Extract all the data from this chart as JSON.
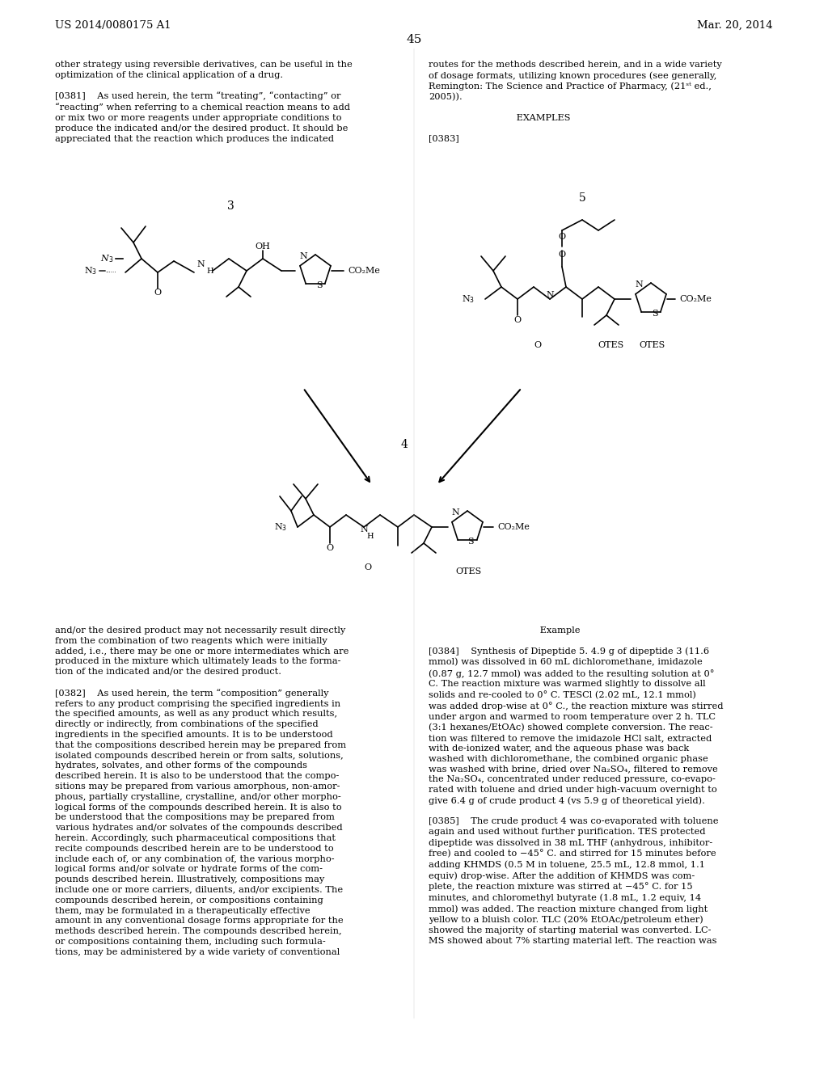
{
  "page_number": "45",
  "header_left": "US 2014/0080175 A1",
  "header_right": "Mar. 20, 2014",
  "background_color": "#ffffff",
  "text_color": "#000000",
  "left_col_top_text": "other strategy using reversible derivatives, can be useful in the\noptimization of the clinical application of a drug.\n\n[0381]    As used herein, the term “treating”, “contacting” or\n“reacting” when referring to a chemical reaction means to add\nor mix two or more reagents under appropriate conditions to\nproduce the indicated and/or the desired product. It should be\nappreciated that the reaction which produces the indicated",
  "right_col_top_text": "routes for the methods described herein, and in a wide variety\nof dosage formats, utilizing known procedures (see generally,\nRemington: The Science and Practice of Pharmacy, (21st ed.,\n2005)).\n\n                              EXAMPLES\n\n[0383]",
  "left_col_bottom_text": "and/or the desired product may not necessarily result directly\nfrom the combination of two reagents which were initially\nadded, i.e., there may be one or more intermediates which are\nproduced in the mixture which ultimately leads to the forma-\ntion of the indicated and/or the desired product.\n\n[0382]    As used herein, the term “composition” generally\nrefers to any product comprising the specified ingredients in\nthe specified amounts, as well as any product which results,\ndirectly or indirectly, from combinations of the specified\ningredients in the specified amounts. It is to be understood\nthat the compositions described herein may be prepared from\nisolated compounds described herein or from salts, solutions,\nhydrates, solvates, and other forms of the compounds\ndescribed herein. It is also to be understood that the compo-\nsitions may be prepared from various amorphous, non-amor-\nphous, partially crystalline, crystalline, and/or other morpho-\nlogical forms of the compounds described herein. It is also to\nbe understood that the compositions may be prepared from\nvarious hydrates and/or solvates of the compounds described\nherein. Accordingly, such pharmaceutical compositions that\nrecite compounds described herein are to be understood to\ninclude each of, or any combination of, the various morpho-\nlogical forms and/or solvate or hydrate forms of the com-\npounds described herein. Illustratively, compositions may\ninclude one or more carriers, diluents, and/or excipients. The\ncompounds described herein, or compositions containing\nthem, may be formulated in a therapeutically effective\namount in any conventional dosage forms appropriate for the\nmethods described herein. The compounds described herein,\nor compositions containing them, including such formula-\ntions, may be administered by a wide variety of conventional",
  "right_col_bottom_text": "                                      Example\n\n[0384]    Synthesis of Dipeptide 5. 4.9 g of dipeptide 3 (11.6\nmmol) was dissolved in 60 mL dichloromethane, imidazole\n(0.87 g, 12.7 mmol) was added to the resulting solution at 0°\nC. The reaction mixture was warmed slightly to dissolve all\nsolids and re-cooled to 0° C. TESCl (2.02 mL, 12.1 mmol)\nwas added drop-wise at 0° C., the reaction mixture was stirred\nunder argon and warmed to room temperature over 2 h. TLC\n(3:1 hexanes/EtOAc) showed complete conversion. The reac-\ntion was filtered to remove the imidazole HCl salt, extracted\nwith de-ionized water, and the aqueous phase was back\nwashed with dichloromethane, the combined organic phase\nwas washed with brine, dried over Na₂SO₄, filtered to remove\nthe Na₂SO₄, concentrated under reduced pressure, co-evapo-\nrated with toluene and dried under high-vacuum overnight to\ngive 6.4 g of crude product 4 (vs 5.9 g of theoretical yield).\n\n[0385]    The crude product 4 was co-evaporated with toluene\nagain and used without further purification. TES protected\ndipeptide was dissolved in 38 mL THF (anhydrous, inhibitor-\nfree) and cooled to −45° C. and stirred for 15 minutes before\nadding KHMDS (0.5 M in toluene, 25.5 mL, 12.8 mmol, 1.1\nequiv) drop-wise. After the addition of KHMDS was com-\nplete, the reaction mixture was stirred at −45° C. for 15\nminutes, and chloromethyl butyrate (1.8 mL, 1.2 equiv, 14\nmmol) was added. The reaction mixture changed from light\nyellow to a bluish color. TLC (20% EtOAc/petroleum ether)\nshowed the majority of starting material was converted. LC-\nMS showed about 7% starting material left. The reaction was"
}
